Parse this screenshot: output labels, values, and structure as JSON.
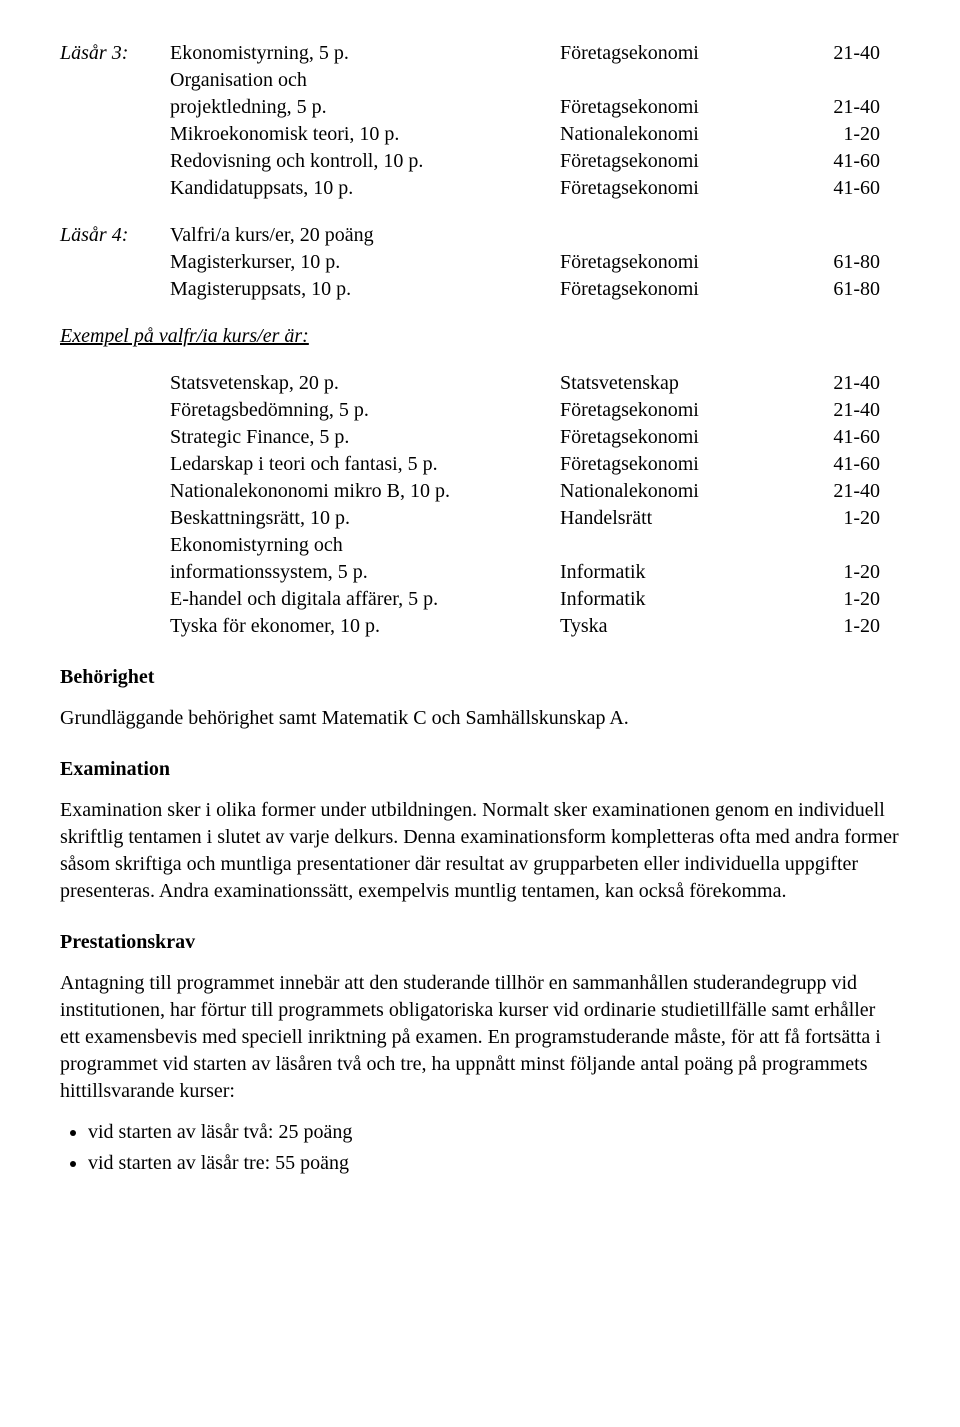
{
  "year3": {
    "label": "Läsår 3:",
    "rows": [
      {
        "course": "Ekonomistyrning, 5 p.",
        "subject": "Företagsekonomi",
        "range": "21-40"
      },
      {
        "course": "Organisation och",
        "subject": "",
        "range": ""
      },
      {
        "course": "projektledning, 5 p.",
        "subject": "Företagsekonomi",
        "range": "21-40"
      },
      {
        "course": "Mikroekonomisk teori, 10 p.",
        "subject": "Nationalekonomi",
        "range": "1-20"
      },
      {
        "course": "Redovisning och kontroll, 10 p.",
        "subject": "Företagsekonomi",
        "range": "41-60"
      },
      {
        "course": "Kandidatuppsats, 10 p.",
        "subject": "Företagsekonomi",
        "range": "41-60"
      }
    ]
  },
  "year4": {
    "label": "Läsår 4:",
    "rows": [
      {
        "course": "Valfri/a kurs/er, 20 poäng",
        "subject": "",
        "range": ""
      },
      {
        "course": "Magisterkurser, 10 p.",
        "subject": "Företagsekonomi",
        "range": "61-80"
      },
      {
        "course": "Magisteruppsats, 10 p.",
        "subject": "Företagsekonomi",
        "range": "61-80"
      }
    ]
  },
  "optional": {
    "heading": "Exempel på valfr/ia kurs/er är:",
    "rows": [
      {
        "course": "Statsvetenskap, 20 p.",
        "subject": "Statsvetenskap",
        "range": "21-40"
      },
      {
        "course": "Företagsbedömning, 5 p.",
        "subject": "Företagsekonomi",
        "range": "21-40"
      },
      {
        "course": "Strategic Finance, 5 p.",
        "subject": "Företagsekonomi",
        "range": "41-60"
      },
      {
        "course": "Ledarskap i teori och fantasi, 5 p.",
        "subject": "Företagsekonomi",
        "range": "41-60"
      },
      {
        "course": "Nationalekononomi mikro B, 10 p.",
        "subject": "Nationalekonomi",
        "range": "21-40"
      },
      {
        "course": "Beskattningsrätt, 10 p.",
        "subject": "Handelsrätt",
        "range": "1-20"
      },
      {
        "course": "Ekonomistyrning och",
        "subject": "",
        "range": ""
      },
      {
        "course": "informationssystem, 5 p.",
        "subject": "Informatik",
        "range": "1-20"
      },
      {
        "course": "E-handel och digitala affärer, 5 p.",
        "subject": "Informatik",
        "range": "1-20"
      },
      {
        "course": "Tyska för ekonomer, 10 p.",
        "subject": "Tyska",
        "range": "1-20"
      }
    ]
  },
  "eligibility": {
    "heading": "Behörighet",
    "text": "Grundläggande behörighet samt Matematik C och Samhällskunskap A."
  },
  "examination": {
    "heading": "Examination",
    "text": "Examination sker i olika former under utbildningen. Normalt sker examinationen genom en individuell skriftlig tentamen i slutet av varje delkurs. Denna examinationsform kompletteras ofta med andra former såsom skriftiga och muntliga presentationer där resultat av grupparbeten eller individuella uppgifter presenteras. Andra examinationssätt, exempelvis muntlig tentamen, kan också förekomma."
  },
  "requirements": {
    "heading": "Prestationskrav",
    "text": "Antagning till programmet innebär att den studerande tillhör en sammanhållen studerandegrupp vid institutionen, har förtur till programmets obligatoriska kurser vid ordinarie studietillfälle samt erhåller ett examensbevis med speciell inriktning på examen. En programstuderande måste, för att få fortsätta i programmet vid starten av läsåren två och tre, ha uppnått minst följande antal poäng på programmets hittillsvarande kurser:",
    "bullets": [
      "vid starten av läsår två: 25 poäng",
      "vid starten av läsår tre: 55 poäng"
    ]
  }
}
